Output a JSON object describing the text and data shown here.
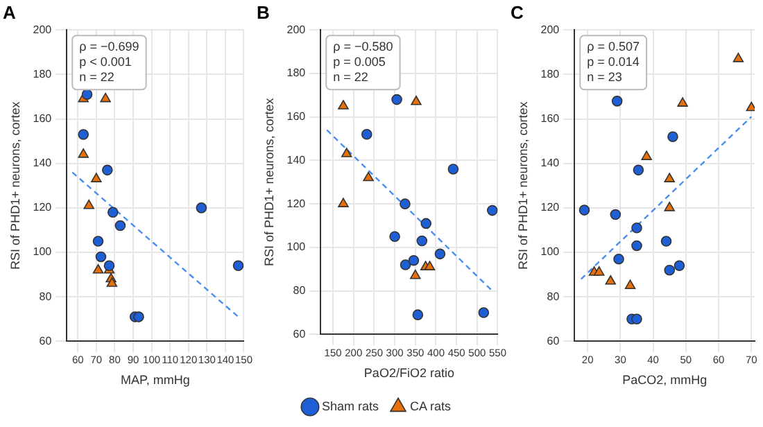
{
  "chart_data": [
    {
      "type": "scatter",
      "title": "A",
      "xlabel": "MAP, mmHg",
      "ylabel": "RSI of PHD1+ neurons, cortex",
      "annotations": [
        "ρ = −0.699\np < 0.001\nn = 22"
      ],
      "xlim": [
        54,
        150
      ],
      "xticks": [
        60,
        70,
        80,
        90,
        100,
        110,
        120,
        130,
        140,
        150
      ],
      "ylim": [
        60,
        200
      ],
      "yticks": [
        60,
        80,
        100,
        120,
        140,
        160,
        180,
        200
      ],
      "grid": true,
      "legend": false,
      "series": [
        {
          "color": "#1f5fd6",
          "marker": "circle",
          "x": [
            65,
            63,
            76,
            79,
            83,
            127,
            71,
            72.5,
            77,
            91,
            93,
            147
          ],
          "values": [
            171,
            153,
            137,
            118,
            112,
            120,
            105,
            98,
            94,
            71,
            71,
            94
          ]
        },
        {
          "color": "#e8700a",
          "marker": "triangle",
          "x": [
            63,
            75,
            63,
            70,
            66,
            71,
            77,
            78,
            78.5
          ],
          "values": [
            169,
            169,
            144,
            133,
            121,
            92,
            92,
            88,
            86
          ]
        },
        {
          "type": "line",
          "color": "#4a8ef0",
          "marker": "none",
          "line_style": "dashed",
          "x": [
            57,
            147
          ],
          "values": [
            136,
            71
          ]
        }
      ]
    },
    {
      "type": "scatter",
      "title": "B",
      "xlabel": "PaO2/FiO2 ratio",
      "ylabel": "RSI of PHD1+ neurons, cortex",
      "annotations": [
        "ρ = −0.580\np = 0.005\nn = 22"
      ],
      "xlim": [
        120,
        550
      ],
      "xticks": [
        150,
        200,
        250,
        300,
        350,
        400,
        450,
        500,
        550
      ],
      "ylim": [
        60,
        200
      ],
      "yticks": [
        60,
        80,
        100,
        120,
        140,
        160,
        180,
        200
      ],
      "grid": true,
      "legend": "bottom",
      "series": [
        {
          "name": "Sham rats",
          "color": "#1f5fd6",
          "marker": "circle",
          "x": [
            305,
            232,
            442,
            325,
            537,
            376,
            300,
            366,
            410,
            326,
            346,
            356,
            516
          ],
          "values": [
            168,
            152,
            136,
            120,
            117,
            111,
            105,
            103,
            97,
            92,
            94,
            69,
            70
          ]
        },
        {
          "name": "CA rats",
          "color": "#e8700a",
          "marker": "triangle",
          "x": [
            175,
            352,
            183,
            236,
            175,
            375,
            385,
            350
          ],
          "values": [
            165,
            167,
            143,
            132,
            120,
            91,
            91,
            87
          ]
        },
        {
          "type": "line",
          "color": "#4a8ef0",
          "marker": "none",
          "line_style": "dashed",
          "x": [
            135,
            537
          ],
          "values": [
            154,
            80
          ]
        }
      ]
    },
    {
      "type": "scatter",
      "title": "C",
      "xlabel": "PaCO2, mmHg",
      "ylabel": "RSI of PHD1+ neurons, cortex",
      "annotations": [
        "ρ = 0.507\np = 0.014\nn = 23"
      ],
      "xlim": [
        16,
        71
      ],
      "xticks": [
        20,
        30,
        40,
        50,
        60,
        70
      ],
      "ylim": [
        60,
        200
      ],
      "yticks": [
        60,
        80,
        100,
        120,
        140,
        160,
        180,
        200
      ],
      "grid": true,
      "legend": false,
      "series": [
        {
          "color": "#1f5fd6",
          "marker": "circle",
          "x": [
            29,
            46,
            35.5,
            19,
            28.5,
            35,
            35,
            44,
            29.5,
            45,
            48,
            33.5,
            35
          ],
          "values": [
            168,
            152,
            137,
            119,
            117,
            111,
            103,
            105,
            97,
            92,
            94,
            70,
            70
          ]
        },
        {
          "color": "#e8700a",
          "marker": "triangle",
          "x": [
            66,
            49,
            70,
            38,
            45,
            45,
            22,
            23.5,
            27,
            33
          ],
          "values": [
            187,
            167,
            165,
            143,
            133,
            120,
            91,
            91,
            87,
            85
          ]
        },
        {
          "type": "line",
          "color": "#4a8ef0",
          "marker": "none",
          "line_style": "dashed",
          "x": [
            18,
            70
          ],
          "values": [
            88,
            161
          ]
        }
      ]
    }
  ]
}
